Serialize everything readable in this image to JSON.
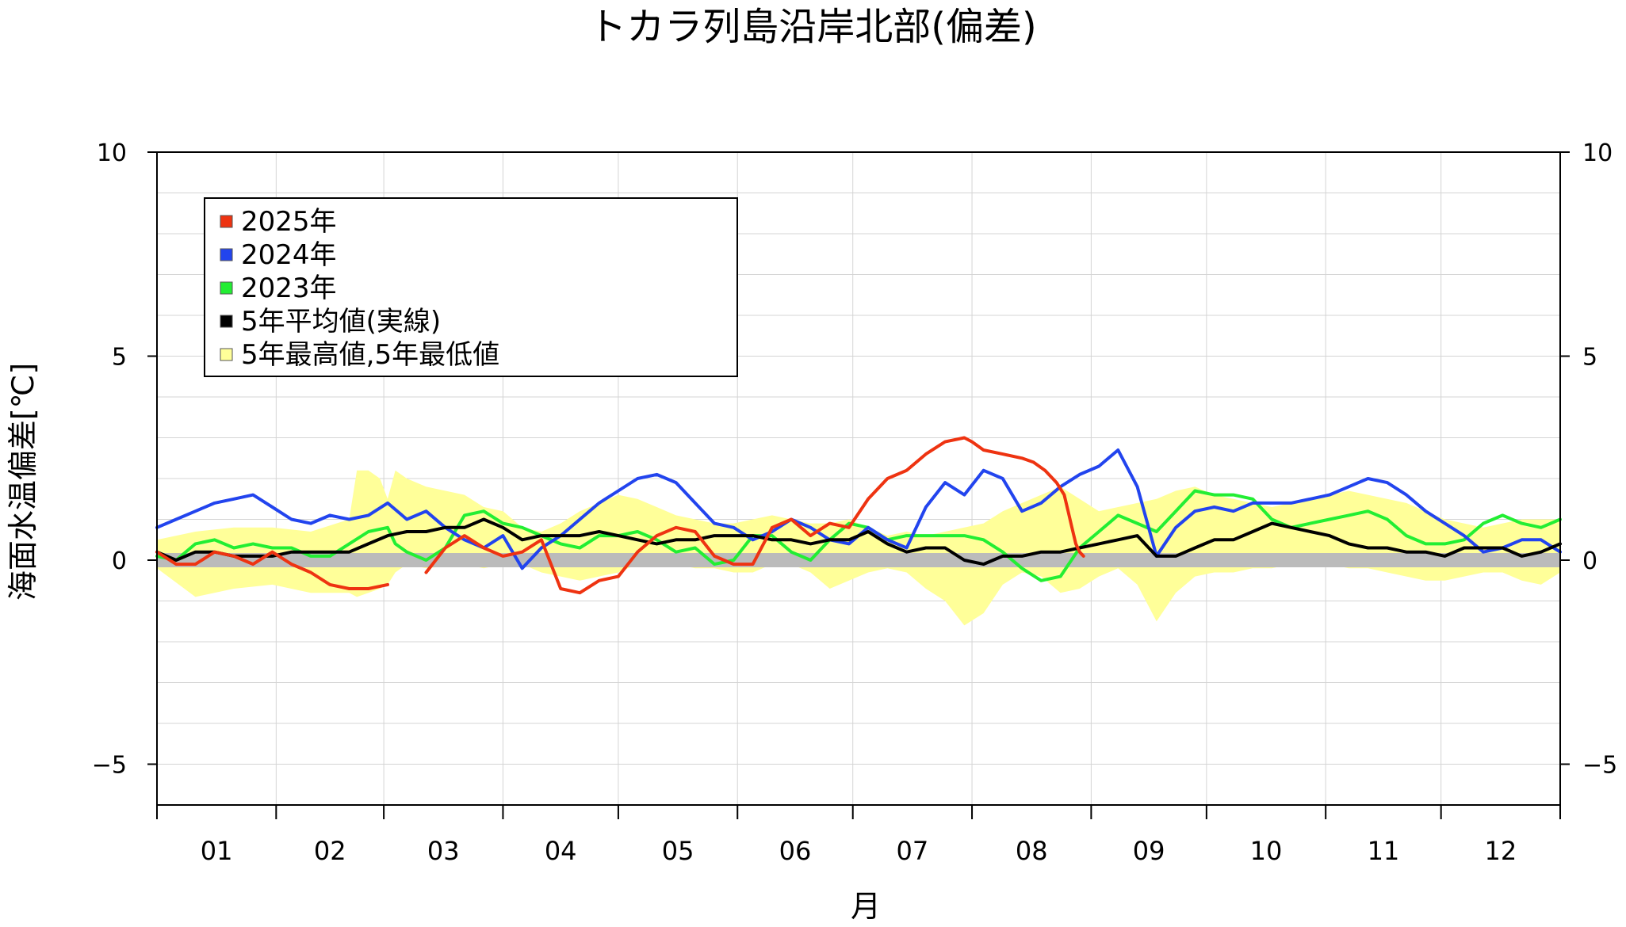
{
  "chart_data": {
    "type": "line",
    "title": "トカラ列島沿岸北部(偏差)",
    "xlabel": "月",
    "ylabel": "海面水温偏差[℃]",
    "ylim": [
      -6,
      10
    ],
    "xlim": [
      0,
      365
    ],
    "grid": true,
    "legend_placement": "top-left",
    "month_labels": [
      "01",
      "02",
      "03",
      "04",
      "05",
      "06",
      "07",
      "08",
      "09",
      "10",
      "11",
      "12"
    ],
    "y_ticks": [
      -5,
      0,
      5,
      10
    ],
    "legend": [
      {
        "label": "2025年",
        "color": "#ee3311",
        "marker": "square"
      },
      {
        "label": "2024年",
        "color": "#2244ee",
        "marker": "square"
      },
      {
        "label": "2023年",
        "color": "#22ee33",
        "marker": "square"
      },
      {
        "label": "5年平均値(実線)",
        "color": "#000000",
        "marker": "square"
      },
      {
        "label": "5年最高値,5年最低値",
        "color": "#ffff99",
        "marker": "square"
      }
    ],
    "colors": {
      "y2025": "#ee3311",
      "y2024": "#2244ee",
      "y2023": "#22ee33",
      "avg": "#000000",
      "band": "#ffff99",
      "zero": "#bbbbbb"
    },
    "series": [
      {
        "key": "y2025",
        "x": [
          0,
          5,
          10,
          15,
          20,
          25,
          30,
          35,
          40,
          45,
          50,
          55,
          60,
          65,
          70,
          75,
          80,
          85,
          90,
          95,
          100,
          105,
          110,
          115,
          120,
          125,
          130,
          135,
          140,
          145,
          150,
          155,
          160,
          165,
          170,
          175,
          180,
          185,
          190,
          195,
          200,
          205,
          210,
          212,
          215,
          220,
          225,
          228,
          231,
          234,
          236,
          237,
          238,
          239,
          240,
          241
        ],
        "y": [
          0.2,
          -0.1,
          -0.1,
          0.2,
          0.1,
          -0.1,
          0.2,
          -0.1,
          -0.3,
          -0.6,
          -0.7,
          -0.7,
          -0.6,
          null,
          -0.3,
          0.3,
          0.6,
          0.3,
          0.1,
          0.2,
          0.5,
          -0.7,
          -0.8,
          -0.5,
          -0.4,
          0.2,
          0.6,
          0.8,
          0.7,
          0.1,
          -0.1,
          -0.1,
          0.8,
          1.0,
          0.6,
          0.9,
          0.8,
          1.5,
          2.0,
          2.2,
          2.6,
          2.9,
          3.0,
          2.9,
          2.7,
          2.6,
          2.5,
          2.4,
          2.2,
          1.9,
          1.6,
          1.2,
          0.8,
          0.4,
          0.2,
          0.1
        ]
      },
      {
        "key": "y2024",
        "x": [
          0,
          5,
          10,
          15,
          20,
          25,
          30,
          35,
          40,
          45,
          50,
          55,
          60,
          65,
          70,
          75,
          80,
          85,
          90,
          95,
          100,
          105,
          110,
          115,
          120,
          125,
          130,
          135,
          140,
          145,
          150,
          155,
          160,
          165,
          170,
          175,
          180,
          185,
          190,
          195,
          200,
          205,
          210,
          215,
          220,
          225,
          230,
          235,
          240,
          245,
          250,
          255,
          260,
          265,
          270,
          275,
          280,
          285,
          290,
          295,
          300,
          305,
          310,
          315,
          320,
          325,
          330,
          335,
          340,
          345,
          350,
          355,
          360,
          365
        ],
        "y": [
          0.8,
          1.0,
          1.2,
          1.4,
          1.5,
          1.6,
          1.3,
          1.0,
          0.9,
          1.1,
          1.0,
          1.1,
          1.4,
          1.0,
          1.2,
          0.8,
          0.5,
          0.3,
          0.6,
          -0.2,
          0.3,
          0.6,
          1.0,
          1.4,
          1.7,
          2.0,
          2.1,
          1.9,
          1.4,
          0.9,
          0.8,
          0.5,
          0.7,
          1.0,
          0.8,
          0.5,
          0.4,
          0.8,
          0.5,
          0.3,
          1.3,
          1.9,
          1.6,
          2.2,
          2.0,
          1.2,
          1.4,
          1.8,
          2.1,
          2.3,
          2.7,
          1.8,
          0.1,
          0.8,
          1.2,
          1.3,
          1.2,
          1.4,
          1.4,
          1.4,
          1.5,
          1.6,
          1.8,
          2.0,
          1.9,
          1.6,
          1.2,
          0.9,
          0.6,
          0.2,
          0.3,
          0.5,
          0.5,
          0.2
        ]
      },
      {
        "key": "y2023",
        "x": [
          0,
          5,
          10,
          15,
          20,
          25,
          30,
          35,
          40,
          45,
          50,
          55,
          60,
          62,
          65,
          70,
          75,
          80,
          85,
          90,
          95,
          100,
          105,
          110,
          115,
          120,
          125,
          130,
          135,
          140,
          145,
          150,
          155,
          160,
          165,
          170,
          175,
          180,
          185,
          190,
          195,
          200,
          205,
          210,
          215,
          220,
          225,
          230,
          235,
          240,
          245,
          250,
          255,
          260,
          265,
          270,
          275,
          280,
          285,
          290,
          295,
          300,
          305,
          310,
          315,
          320,
          325,
          330,
          335,
          340,
          345,
          350,
          355,
          360,
          365
        ],
        "y": [
          0.1,
          0.0,
          0.4,
          0.5,
          0.3,
          0.4,
          0.3,
          0.3,
          0.1,
          0.1,
          0.4,
          0.7,
          0.8,
          0.4,
          0.2,
          0.0,
          0.3,
          1.1,
          1.2,
          0.9,
          0.8,
          0.6,
          0.4,
          0.3,
          0.6,
          0.6,
          0.7,
          0.5,
          0.2,
          0.3,
          -0.1,
          0.0,
          0.6,
          0.6,
          0.2,
          0.0,
          0.5,
          0.9,
          0.8,
          0.5,
          0.6,
          0.6,
          0.6,
          0.6,
          0.5,
          0.2,
          -0.2,
          -0.5,
          -0.4,
          0.3,
          0.7,
          1.1,
          0.9,
          0.7,
          1.2,
          1.7,
          1.6,
          1.6,
          1.5,
          1.0,
          0.8,
          0.9,
          1.0,
          1.1,
          1.2,
          1.0,
          0.6,
          0.4,
          0.4,
          0.5,
          0.9,
          1.1,
          0.9,
          0.8,
          1.0
        ]
      },
      {
        "key": "avg",
        "x": [
          0,
          5,
          10,
          15,
          20,
          25,
          30,
          35,
          40,
          45,
          50,
          55,
          60,
          65,
          70,
          75,
          80,
          85,
          90,
          95,
          100,
          105,
          110,
          115,
          120,
          125,
          130,
          135,
          140,
          145,
          150,
          155,
          160,
          165,
          170,
          175,
          180,
          185,
          190,
          195,
          200,
          205,
          210,
          215,
          220,
          225,
          230,
          235,
          240,
          245,
          250,
          255,
          260,
          265,
          270,
          275,
          280,
          285,
          290,
          295,
          300,
          305,
          310,
          315,
          320,
          325,
          330,
          335,
          340,
          345,
          350,
          355,
          360,
          365
        ],
        "y": [
          0.2,
          0.0,
          0.2,
          0.2,
          0.1,
          0.1,
          0.1,
          0.2,
          0.2,
          0.2,
          0.2,
          0.4,
          0.6,
          0.7,
          0.7,
          0.8,
          0.8,
          1.0,
          0.8,
          0.5,
          0.6,
          0.6,
          0.6,
          0.7,
          0.6,
          0.5,
          0.4,
          0.5,
          0.5,
          0.6,
          0.6,
          0.6,
          0.5,
          0.5,
          0.4,
          0.5,
          0.5,
          0.7,
          0.4,
          0.2,
          0.3,
          0.3,
          0.0,
          -0.1,
          0.1,
          0.1,
          0.2,
          0.2,
          0.3,
          0.4,
          0.5,
          0.6,
          0.1,
          0.1,
          0.3,
          0.5,
          0.5,
          0.7,
          0.9,
          0.8,
          0.7,
          0.6,
          0.4,
          0.3,
          0.3,
          0.2,
          0.2,
          0.1,
          0.3,
          0.3,
          0.3,
          0.1,
          0.2,
          0.4
        ]
      },
      {
        "key": "band_max",
        "x": [
          0,
          10,
          20,
          30,
          40,
          50,
          52,
          55,
          58,
          60,
          62,
          65,
          70,
          80,
          85,
          90,
          95,
          100,
          105,
          110,
          115,
          120,
          125,
          130,
          135,
          140,
          145,
          150,
          155,
          160,
          165,
          170,
          175,
          180,
          185,
          190,
          195,
          200,
          205,
          210,
          215,
          220,
          225,
          230,
          235,
          240,
          245,
          250,
          255,
          260,
          265,
          270,
          275,
          280,
          285,
          290,
          295,
          300,
          305,
          310,
          315,
          320,
          325,
          330,
          335,
          340,
          345,
          350,
          355,
          360,
          365
        ],
        "y": [
          0.5,
          0.7,
          0.8,
          0.8,
          0.7,
          1.0,
          2.2,
          2.2,
          2.0,
          1.5,
          2.2,
          2.0,
          1.8,
          1.6,
          1.3,
          1.2,
          0.8,
          0.7,
          0.9,
          1.2,
          1.4,
          1.6,
          1.5,
          1.3,
          1.1,
          1.0,
          0.9,
          0.9,
          1.0,
          1.1,
          1.0,
          0.9,
          0.9,
          1.0,
          0.8,
          0.6,
          0.7,
          0.6,
          0.7,
          0.8,
          0.9,
          1.2,
          1.4,
          1.6,
          1.8,
          1.5,
          1.2,
          1.3,
          1.4,
          1.5,
          1.7,
          1.8,
          1.6,
          1.5,
          1.4,
          1.3,
          1.4,
          1.5,
          1.6,
          1.7,
          1.6,
          1.5,
          1.4,
          1.2,
          1.0,
          0.9,
          0.8,
          0.9,
          1.0,
          1.0,
          1.0
        ]
      },
      {
        "key": "band_min",
        "x": [
          0,
          10,
          20,
          30,
          40,
          50,
          52,
          55,
          58,
          60,
          62,
          65,
          70,
          80,
          85,
          90,
          95,
          100,
          105,
          110,
          115,
          120,
          125,
          130,
          135,
          140,
          145,
          150,
          155,
          160,
          165,
          170,
          175,
          180,
          185,
          190,
          195,
          200,
          205,
          210,
          215,
          220,
          225,
          230,
          235,
          240,
          245,
          250,
          255,
          260,
          265,
          270,
          275,
          280,
          285,
          290,
          295,
          300,
          305,
          310,
          315,
          320,
          325,
          330,
          335,
          340,
          345,
          350,
          355,
          360,
          365
        ],
        "y": [
          -0.2,
          -0.9,
          -0.7,
          -0.6,
          -0.8,
          -0.8,
          -0.9,
          -0.8,
          -0.7,
          -0.6,
          -0.3,
          -0.1,
          -0.2,
          -0.1,
          -0.2,
          -0.1,
          -0.1,
          -0.3,
          -0.4,
          -0.5,
          -0.4,
          -0.3,
          -0.1,
          0.0,
          -0.1,
          -0.2,
          -0.2,
          -0.3,
          -0.3,
          -0.1,
          -0.1,
          -0.3,
          -0.7,
          -0.5,
          -0.3,
          -0.2,
          -0.3,
          -0.7,
          -1.0,
          -1.6,
          -1.3,
          -0.6,
          -0.3,
          -0.4,
          -0.8,
          -0.7,
          -0.4,
          -0.2,
          -0.6,
          -1.5,
          -0.8,
          -0.4,
          -0.3,
          -0.3,
          -0.2,
          -0.2,
          -0.1,
          -0.1,
          -0.1,
          -0.2,
          -0.2,
          -0.3,
          -0.4,
          -0.5,
          -0.5,
          -0.4,
          -0.3,
          -0.3,
          -0.5,
          -0.6,
          -0.3
        ]
      }
    ]
  }
}
